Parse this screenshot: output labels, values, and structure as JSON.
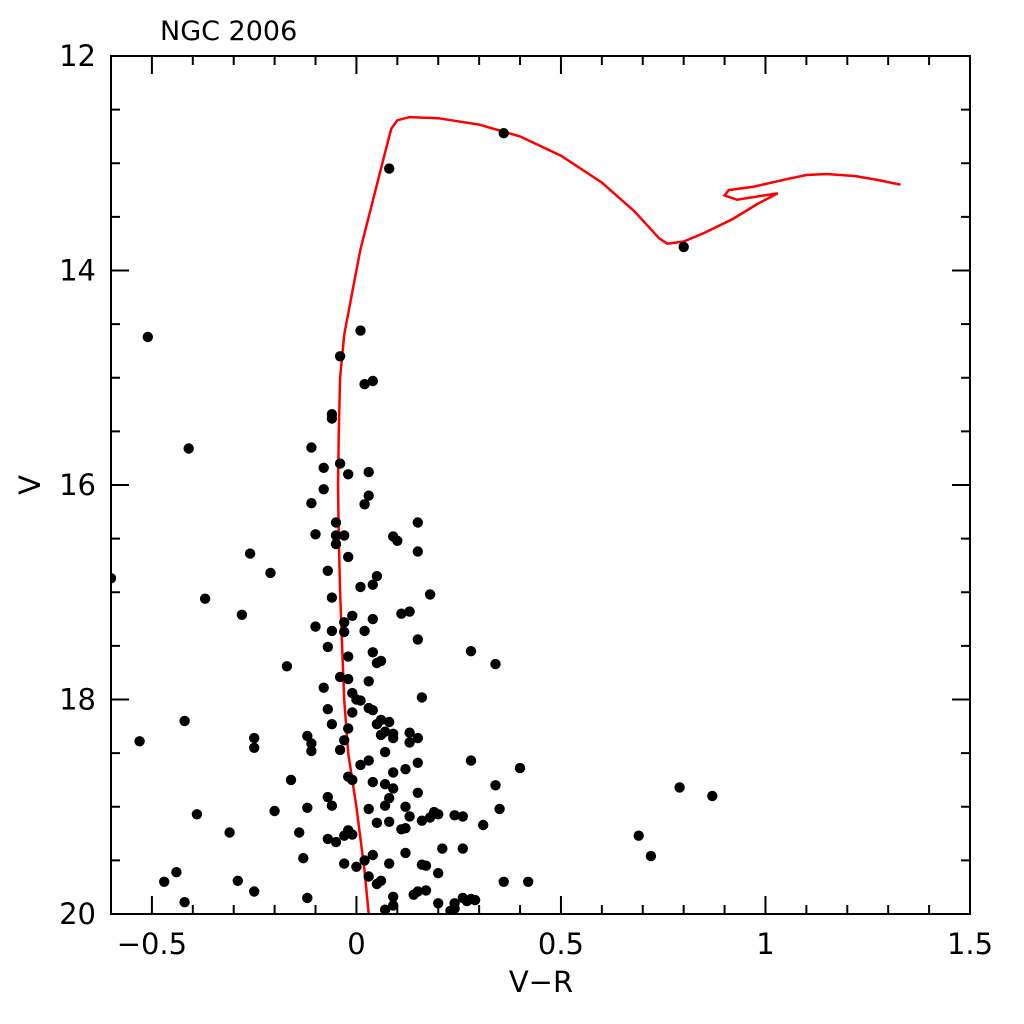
{
  "chart_data": {
    "type": "scatter",
    "title": "NGC 2006",
    "xlabel": "V−R",
    "ylabel": "V",
    "xlim": [
      -0.6,
      1.5
    ],
    "ylim": [
      20,
      12
    ],
    "y_inverted": true,
    "x_ticks": [
      -0.5,
      0,
      0.5,
      1,
      1.5
    ],
    "x_tick_labels": [
      "−0.5",
      "0",
      "0.5",
      "1",
      "1.5"
    ],
    "y_ticks": [
      12,
      14,
      16,
      18,
      20
    ],
    "y_tick_labels": [
      "12",
      "14",
      "16",
      "18",
      "20"
    ],
    "grid": false,
    "legend": "none",
    "colors": {
      "points": "#000000",
      "isochrone": "#ff0000"
    },
    "series": [
      {
        "kind": "scatter",
        "points": [
          [
            0.36,
            12.72
          ],
          [
            0.08,
            13.05
          ],
          [
            0.8,
            13.78
          ],
          [
            -0.51,
            14.62
          ],
          [
            0.01,
            14.56
          ],
          [
            -0.04,
            14.8
          ],
          [
            0.02,
            15.06
          ],
          [
            0.04,
            15.03
          ],
          [
            -0.06,
            15.34
          ],
          [
            -0.06,
            15.38
          ],
          [
            -0.41,
            15.66
          ],
          [
            -0.11,
            15.65
          ],
          [
            -0.08,
            15.84
          ],
          [
            -0.04,
            15.8
          ],
          [
            0.03,
            15.88
          ],
          [
            -0.02,
            15.9
          ],
          [
            -0.08,
            16.04
          ],
          [
            0.03,
            16.1
          ],
          [
            -0.11,
            16.17
          ],
          [
            0.02,
            16.18
          ],
          [
            0.15,
            16.35
          ],
          [
            -0.05,
            16.35
          ],
          [
            -0.1,
            16.46
          ],
          [
            -0.05,
            16.47
          ],
          [
            -0.03,
            16.47
          ],
          [
            0.09,
            16.48
          ],
          [
            0.1,
            16.52
          ],
          [
            -0.05,
            16.55
          ],
          [
            -0.26,
            16.64
          ],
          [
            -0.02,
            16.67
          ],
          [
            0.15,
            16.62
          ],
          [
            -0.6,
            16.87
          ],
          [
            -0.21,
            16.82
          ],
          [
            -0.07,
            16.8
          ],
          [
            0.05,
            16.85
          ],
          [
            0.04,
            16.93
          ],
          [
            0.01,
            16.95
          ],
          [
            -0.37,
            17.06
          ],
          [
            -0.06,
            17.05
          ],
          [
            0.18,
            17.02
          ],
          [
            -0.28,
            17.21
          ],
          [
            -0.01,
            17.22
          ],
          [
            -0.03,
            17.28
          ],
          [
            0.11,
            17.2
          ],
          [
            0.13,
            17.18
          ],
          [
            0.04,
            17.25
          ],
          [
            -0.1,
            17.32
          ],
          [
            -0.06,
            17.36
          ],
          [
            -0.03,
            17.37
          ],
          [
            0.02,
            17.36
          ],
          [
            0.15,
            17.44
          ],
          [
            -0.07,
            17.51
          ],
          [
            0.04,
            17.56
          ],
          [
            0.28,
            17.55
          ],
          [
            0.34,
            17.67
          ],
          [
            -0.02,
            17.6
          ],
          [
            -0.17,
            17.69
          ],
          [
            0.05,
            17.66
          ],
          [
            0.06,
            17.64
          ],
          [
            -0.04,
            17.79
          ],
          [
            -0.02,
            17.81
          ],
          [
            0.03,
            17.83
          ],
          [
            -0.08,
            17.89
          ],
          [
            0.16,
            17.98
          ],
          [
            -0.01,
            17.94
          ],
          [
            0.0,
            18.0
          ],
          [
            0.01,
            18.01
          ],
          [
            0.03,
            18.08
          ],
          [
            -0.07,
            18.09
          ],
          [
            0.04,
            18.1
          ],
          [
            -0.01,
            18.12
          ],
          [
            -0.42,
            18.2
          ],
          [
            0.06,
            18.19
          ],
          [
            0.08,
            18.21
          ],
          [
            0.05,
            18.23
          ],
          [
            -0.06,
            18.23
          ],
          [
            -0.02,
            18.27
          ],
          [
            0.07,
            18.3
          ],
          [
            0.09,
            18.32
          ],
          [
            0.13,
            18.31
          ],
          [
            0.06,
            18.33
          ],
          [
            -0.12,
            18.34
          ],
          [
            0.15,
            18.36
          ],
          [
            -0.25,
            18.36
          ],
          [
            0.09,
            18.36
          ],
          [
            -0.03,
            18.38
          ],
          [
            0.13,
            18.4
          ],
          [
            -0.53,
            18.39
          ],
          [
            -0.11,
            18.41
          ],
          [
            -0.25,
            18.45
          ],
          [
            -0.04,
            18.47
          ],
          [
            -0.11,
            18.48
          ],
          [
            0.07,
            18.49
          ],
          [
            0.03,
            18.57
          ],
          [
            0.28,
            18.57
          ],
          [
            0.15,
            18.59
          ],
          [
            0.01,
            18.61
          ],
          [
            0.4,
            18.64
          ],
          [
            0.12,
            18.65
          ],
          [
            0.09,
            18.68
          ],
          [
            -0.02,
            18.72
          ],
          [
            -0.16,
            18.75
          ],
          [
            -0.01,
            18.75
          ],
          [
            0.04,
            18.77
          ],
          [
            0.07,
            18.79
          ],
          [
            0.34,
            18.8
          ],
          [
            0.79,
            18.82
          ],
          [
            0.09,
            18.83
          ],
          [
            0.15,
            18.87
          ],
          [
            0.87,
            18.9
          ],
          [
            -0.07,
            18.91
          ],
          [
            0.08,
            18.92
          ],
          [
            -0.06,
            18.99
          ],
          [
            0.07,
            18.99
          ],
          [
            0.12,
            19.0
          ],
          [
            0.35,
            19.02
          ],
          [
            -0.12,
            19.01
          ],
          [
            -0.2,
            19.04
          ],
          [
            0.03,
            19.02
          ],
          [
            0.19,
            19.05
          ],
          [
            0.2,
            19.07
          ],
          [
            0.24,
            19.08
          ],
          [
            0.26,
            19.09
          ],
          [
            -0.39,
            19.07
          ],
          [
            0.13,
            19.09
          ],
          [
            0.18,
            19.1
          ],
          [
            0.16,
            19.13
          ],
          [
            0.08,
            19.14
          ],
          [
            0.05,
            19.15
          ],
          [
            0.31,
            19.17
          ],
          [
            0.12,
            19.2
          ],
          [
            0.11,
            19.21
          ],
          [
            -0.02,
            19.22
          ],
          [
            -0.31,
            19.24
          ],
          [
            -0.14,
            19.24
          ],
          [
            0.69,
            19.27
          ],
          [
            -0.01,
            19.26
          ],
          [
            -0.03,
            19.27
          ],
          [
            -0.07,
            19.3
          ],
          [
            -0.05,
            19.33
          ],
          [
            0.21,
            19.39
          ],
          [
            0.26,
            19.39
          ],
          [
            0.12,
            19.43
          ],
          [
            0.04,
            19.45
          ],
          [
            0.72,
            19.46
          ],
          [
            -0.13,
            19.48
          ],
          [
            0.02,
            19.5
          ],
          [
            -0.03,
            19.53
          ],
          [
            0.08,
            19.53
          ],
          [
            0.16,
            19.54
          ],
          [
            0.0,
            19.56
          ],
          [
            0.17,
            19.55
          ],
          [
            -0.44,
            19.61
          ],
          [
            0.2,
            19.62
          ],
          [
            0.03,
            19.65
          ],
          [
            0.06,
            19.69
          ],
          [
            -0.29,
            19.69
          ],
          [
            -0.47,
            19.7
          ],
          [
            0.36,
            19.7
          ],
          [
            0.42,
            19.7
          ],
          [
            0.05,
            19.72
          ],
          [
            0.15,
            19.79
          ],
          [
            0.17,
            19.78
          ],
          [
            -0.25,
            19.79
          ],
          [
            0.14,
            19.82
          ],
          [
            0.09,
            19.84
          ],
          [
            -0.12,
            19.85
          ],
          [
            0.26,
            19.85
          ],
          [
            0.28,
            19.86
          ],
          [
            0.29,
            19.87
          ],
          [
            0.27,
            19.88
          ],
          [
            -0.42,
            19.89
          ],
          [
            0.2,
            19.9
          ],
          [
            0.24,
            19.9
          ],
          [
            0.09,
            19.92
          ],
          [
            0.24,
            19.95
          ],
          [
            0.07,
            19.96
          ],
          [
            0.23,
            19.97
          ]
        ]
      },
      {
        "kind": "line",
        "points": [
          [
            0.03,
            20.0
          ],
          [
            0.02,
            19.6
          ],
          [
            0.0,
            19.0
          ],
          [
            -0.02,
            18.5
          ],
          [
            -0.03,
            18.0
          ],
          [
            -0.035,
            17.5
          ],
          [
            -0.04,
            17.0
          ],
          [
            -0.043,
            16.5
          ],
          [
            -0.045,
            16.0
          ],
          [
            -0.043,
            15.5
          ],
          [
            -0.04,
            15.0
          ],
          [
            -0.03,
            14.6
          ],
          [
            -0.01,
            14.2
          ],
          [
            0.01,
            13.8
          ],
          [
            0.03,
            13.5
          ],
          [
            0.05,
            13.2
          ],
          [
            0.07,
            12.9
          ],
          [
            0.085,
            12.68
          ],
          [
            0.1,
            12.6
          ],
          [
            0.13,
            12.57
          ],
          [
            0.2,
            12.58
          ],
          [
            0.3,
            12.64
          ],
          [
            0.4,
            12.75
          ],
          [
            0.5,
            12.93
          ],
          [
            0.6,
            13.18
          ],
          [
            0.68,
            13.45
          ],
          [
            0.74,
            13.7
          ],
          [
            0.76,
            13.75
          ],
          [
            0.8,
            13.73
          ],
          [
            0.85,
            13.65
          ],
          [
            0.92,
            13.52
          ],
          [
            0.98,
            13.38
          ],
          [
            1.03,
            13.28
          ],
          [
            0.93,
            13.34
          ],
          [
            0.9,
            13.3
          ],
          [
            0.91,
            13.25
          ],
          [
            0.97,
            13.22
          ],
          [
            1.05,
            13.15
          ],
          [
            1.1,
            13.11
          ],
          [
            1.15,
            13.1
          ],
          [
            1.22,
            13.12
          ],
          [
            1.28,
            13.16
          ],
          [
            1.33,
            13.2
          ]
        ]
      }
    ]
  }
}
